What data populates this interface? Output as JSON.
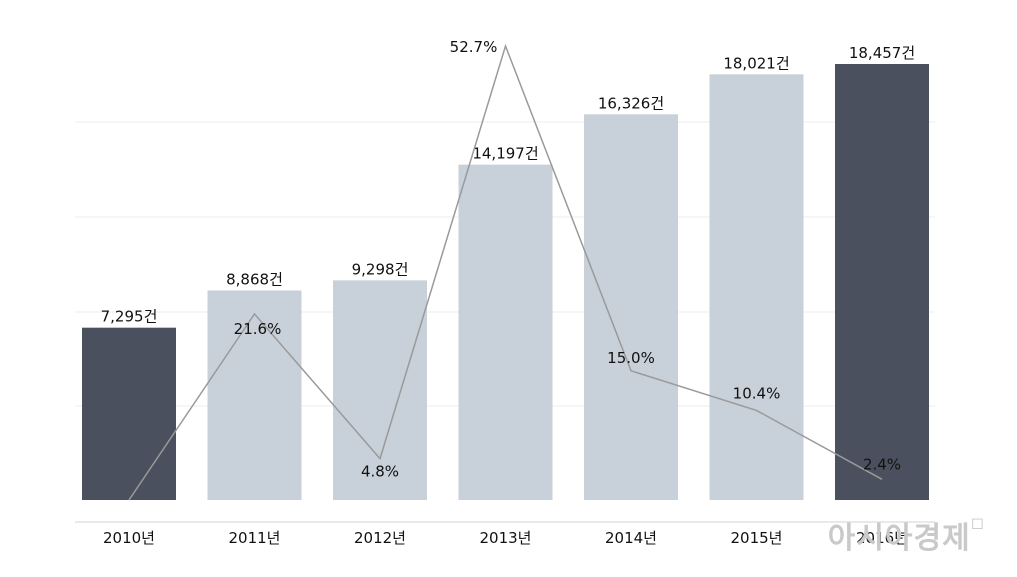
{
  "chart_data": {
    "type": "bar",
    "categories": [
      "2010년",
      "2011년",
      "2012년",
      "2013년",
      "2014년",
      "2015년",
      "2016년"
    ],
    "series": [
      {
        "type": "bar",
        "values": [
          7295,
          8868,
          9298,
          14197,
          16326,
          18021,
          18457
        ],
        "labels": [
          "7,295건",
          "8,868건",
          "9,298건",
          "14,197건",
          "16,326건",
          "18,021건",
          "18,457건"
        ],
        "highlighted": [
          true,
          false,
          false,
          false,
          false,
          false,
          true
        ]
      },
      {
        "type": "line",
        "values": [
          0,
          21.6,
          4.8,
          52.7,
          15.0,
          10.4,
          2.4
        ],
        "labels": [
          "",
          "21.6%",
          "4.8%",
          "52.7%",
          "15.0%",
          "10.4%",
          "2.4%"
        ]
      }
    ],
    "ylim": [
      0,
      20000
    ],
    "y2lim": [
      0,
      56
    ],
    "grid": true,
    "colors": {
      "bar": "#c8d0d9",
      "bar_highlight": "#4a505d",
      "line": "#9a9a9a",
      "grid": "#eeeeee",
      "axis": "#e2e2e2"
    }
  },
  "watermark": "아시아경제"
}
